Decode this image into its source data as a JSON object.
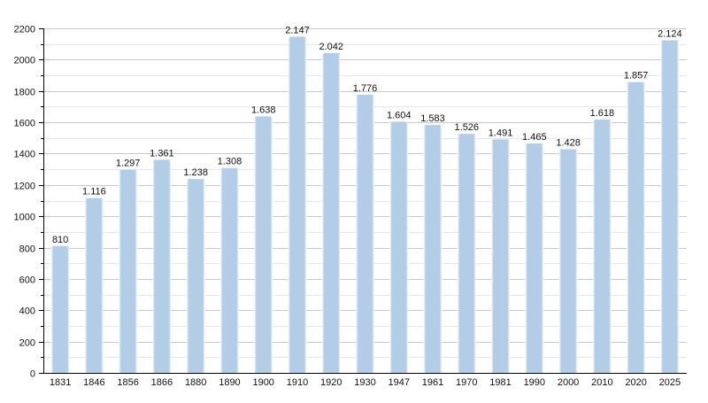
{
  "chart_data": {
    "type": "bar",
    "categories": [
      "1831",
      "1846",
      "1856",
      "1866",
      "1880",
      "1890",
      "1900",
      "1910",
      "1920",
      "1930",
      "1947",
      "1961",
      "1970",
      "1981",
      "1990",
      "2000",
      "2010",
      "2020",
      "2025"
    ],
    "values": [
      810,
      1116,
      1297,
      1361,
      1238,
      1308,
      1638,
      2147,
      2042,
      1776,
      1604,
      1583,
      1526,
      1491,
      1465,
      1428,
      1618,
      1857,
      2124
    ],
    "data_labels": [
      "810",
      "1.116",
      "1.297",
      "1.361",
      "1.238",
      "1.308",
      "1.638",
      "2.147",
      "2.042",
      "1.776",
      "1.604",
      "1.583",
      "1.526",
      "1.491",
      "1.465",
      "1.428",
      "1.618",
      "1.857",
      "2.124"
    ],
    "title": "",
    "xlabel": "",
    "ylabel": "",
    "ylim": [
      0,
      2200
    ],
    "y_ticks": [
      "0",
      "200",
      "400",
      "600",
      "800",
      "1000",
      "1200",
      "1400",
      "1600",
      "1800",
      "2000",
      "2200"
    ],
    "y_tick_values": [
      0,
      200,
      400,
      600,
      800,
      1000,
      1200,
      1400,
      1600,
      1800,
      2000,
      2200
    ],
    "grid": true,
    "legend": "none",
    "colors": {
      "bar": "#b4cde6",
      "bar_edge": "#ffffff",
      "grid": "#c8c8c8",
      "axis": "#000000"
    }
  }
}
